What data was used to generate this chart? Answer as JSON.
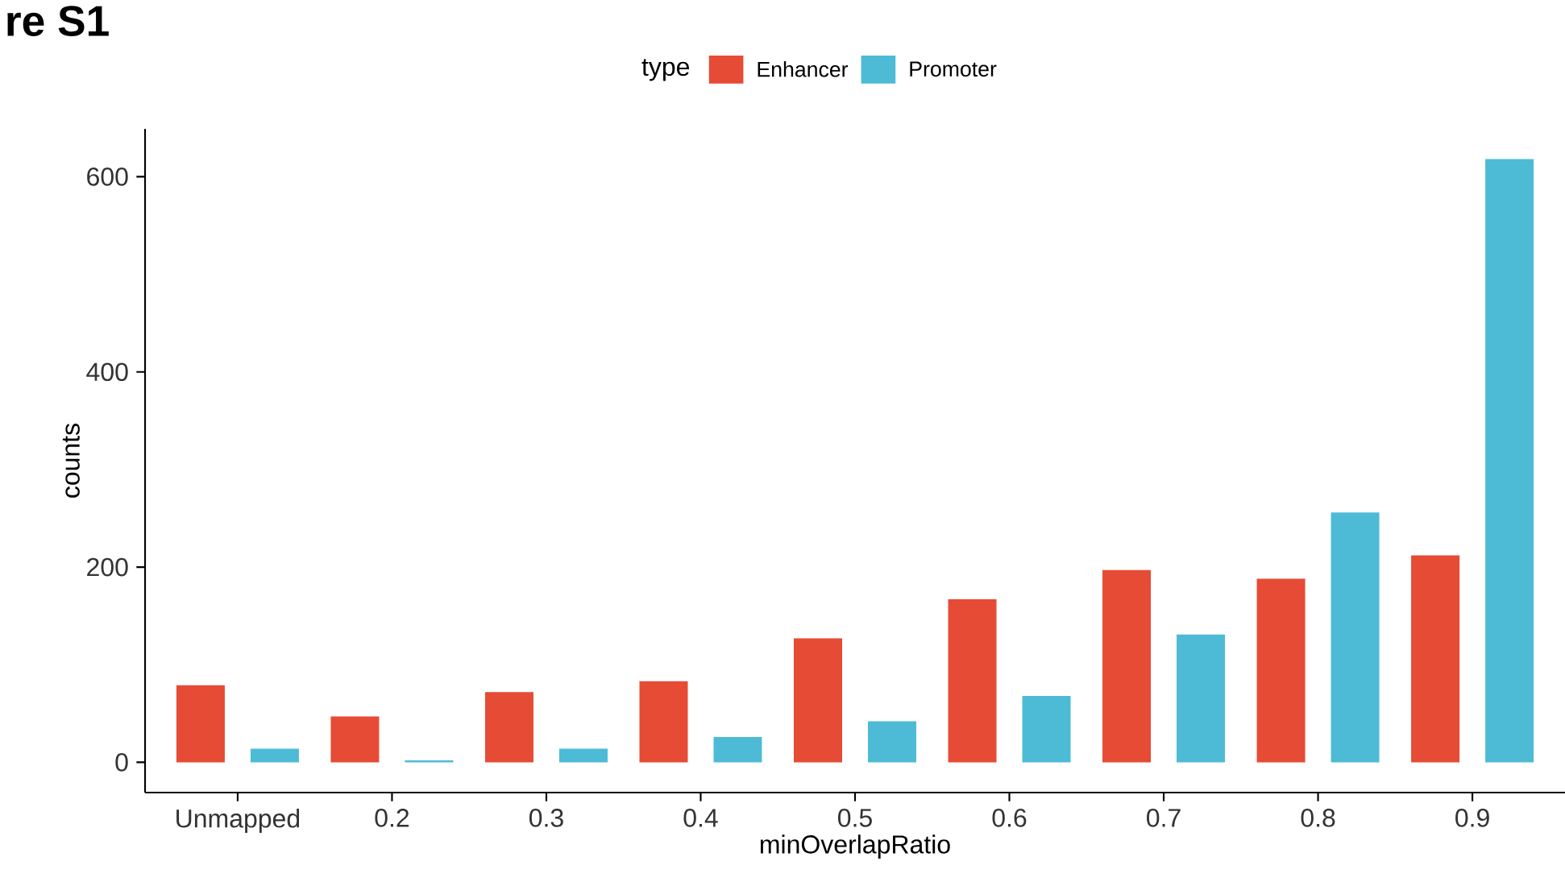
{
  "chart_data": {
    "type": "bar",
    "annotations": [
      "re S1"
    ],
    "xlabel": "minOverlapRatio",
    "ylabel": "counts",
    "legend_title": "type",
    "categories": [
      "Unmapped",
      "0.2",
      "0.3",
      "0.4",
      "0.5",
      "0.6",
      "0.7",
      "0.8",
      "0.9"
    ],
    "series": [
      {
        "name": "Enhancer",
        "color": "#e64b35",
        "values": [
          79,
          47,
          72,
          83,
          127,
          167,
          197,
          188,
          212
        ]
      },
      {
        "name": "Promoter",
        "color": "#4dbbd5",
        "values": [
          14,
          2,
          14,
          26,
          42,
          68,
          131,
          256,
          618
        ]
      }
    ],
    "ylim": [
      -31,
      649
    ],
    "yticks": [
      0,
      200,
      400,
      600
    ],
    "grid": false,
    "legend": "top"
  }
}
